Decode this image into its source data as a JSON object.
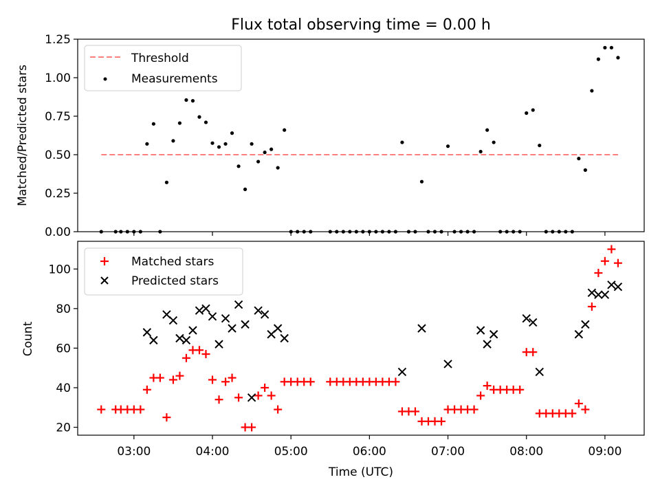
{
  "chart_data": [
    {
      "type": "scatter",
      "title": "Flux total observing time = 0.00 h",
      "xlabel": "",
      "ylabel": "Matched/Predicted stars",
      "xlim": [
        "02:17",
        "09:30"
      ],
      "ylim": [
        0,
        1.25
      ],
      "y_ticks": [
        0.0,
        0.25,
        0.5,
        0.75,
        1.0,
        1.25
      ],
      "y_tick_labels": [
        "0.00",
        "0.25",
        "0.50",
        "0.75",
        "1.00",
        "1.25"
      ],
      "x_ticks": [
        "03:00",
        "04:00",
        "05:00",
        "06:00",
        "07:00",
        "08:00",
        "09:00"
      ],
      "grid": false,
      "legend": "top-left",
      "series": [
        {
          "name": "Threshold",
          "style": "dashed-line",
          "color": "#ff7f7f",
          "points": [
            [
              "02:35",
              0.5
            ],
            [
              "09:10",
              0.5
            ]
          ]
        },
        {
          "name": "Measurements",
          "style": "dot",
          "color": "#000000",
          "points": [
            [
              "02:35",
              0.0
            ],
            [
              "02:46",
              0.0
            ],
            [
              "02:50",
              0.0
            ],
            [
              "02:55",
              0.0
            ],
            [
              "03:00",
              0.0
            ],
            [
              "03:05",
              0.0
            ],
            [
              "03:10",
              0.57
            ],
            [
              "03:15",
              0.7
            ],
            [
              "03:20",
              0.0
            ],
            [
              "03:25",
              0.32
            ],
            [
              "03:30",
              0.59
            ],
            [
              "03:35",
              0.705
            ],
            [
              "03:40",
              0.855
            ],
            [
              "03:45",
              0.85
            ],
            [
              "03:50",
              0.745
            ],
            [
              "03:55",
              0.71
            ],
            [
              "04:00",
              0.575
            ],
            [
              "04:05",
              0.55
            ],
            [
              "04:10",
              0.57
            ],
            [
              "04:15",
              0.64
            ],
            [
              "04:20",
              0.425
            ],
            [
              "04:25",
              0.275
            ],
            [
              "04:30",
              0.57
            ],
            [
              "04:35",
              0.455
            ],
            [
              "04:40",
              0.515
            ],
            [
              "04:45",
              0.535
            ],
            [
              "04:50",
              0.415
            ],
            [
              "04:55",
              0.66
            ],
            [
              "05:00",
              0.0
            ],
            [
              "05:05",
              0.0
            ],
            [
              "05:10",
              0.0
            ],
            [
              "05:15",
              0.0
            ],
            [
              "05:30",
              0.0
            ],
            [
              "05:35",
              0.0
            ],
            [
              "05:40",
              0.0
            ],
            [
              "05:45",
              0.0
            ],
            [
              "05:50",
              0.0
            ],
            [
              "05:55",
              0.0
            ],
            [
              "06:00",
              0.0
            ],
            [
              "06:05",
              0.0
            ],
            [
              "06:10",
              0.0
            ],
            [
              "06:15",
              0.0
            ],
            [
              "06:20",
              0.0
            ],
            [
              "06:25",
              0.58
            ],
            [
              "06:30",
              0.0
            ],
            [
              "06:35",
              0.0
            ],
            [
              "06:40",
              0.325
            ],
            [
              "06:45",
              0.0
            ],
            [
              "06:50",
              0.0
            ],
            [
              "06:55",
              0.0
            ],
            [
              "07:00",
              0.555
            ],
            [
              "07:05",
              0.0
            ],
            [
              "07:10",
              0.0
            ],
            [
              "07:15",
              0.0
            ],
            [
              "07:20",
              0.0
            ],
            [
              "07:25",
              0.52
            ],
            [
              "07:30",
              0.66
            ],
            [
              "07:35",
              0.58
            ],
            [
              "07:40",
              0.0
            ],
            [
              "07:45",
              0.0
            ],
            [
              "07:50",
              0.0
            ],
            [
              "07:55",
              0.0
            ],
            [
              "08:00",
              0.77
            ],
            [
              "08:05",
              0.79
            ],
            [
              "08:10",
              0.56
            ],
            [
              "08:15",
              0.0
            ],
            [
              "08:20",
              0.0
            ],
            [
              "08:25",
              0.0
            ],
            [
              "08:30",
              0.0
            ],
            [
              "08:35",
              0.0
            ],
            [
              "08:40",
              0.475
            ],
            [
              "08:45",
              0.4
            ],
            [
              "08:50",
              0.915
            ],
            [
              "08:55",
              1.12
            ],
            [
              "09:00",
              1.195
            ],
            [
              "09:05",
              1.195
            ],
            [
              "09:10",
              1.13
            ]
          ]
        }
      ]
    },
    {
      "type": "scatter",
      "title": "",
      "xlabel": "Time (UTC)",
      "ylabel": "Count",
      "xlim": [
        "02:17",
        "09:30"
      ],
      "ylim": [
        16,
        114
      ],
      "y_ticks": [
        20,
        40,
        60,
        80,
        100
      ],
      "y_tick_labels": [
        "20",
        "40",
        "60",
        "80",
        "100"
      ],
      "x_ticks": [
        "03:00",
        "04:00",
        "05:00",
        "06:00",
        "07:00",
        "08:00",
        "09:00"
      ],
      "grid": false,
      "legend": "top-left",
      "series": [
        {
          "name": "Matched stars",
          "style": "plus",
          "color": "#ff0000",
          "points": [
            [
              "02:35",
              29
            ],
            [
              "02:46",
              29
            ],
            [
              "02:50",
              29
            ],
            [
              "02:55",
              29
            ],
            [
              "03:00",
              29
            ],
            [
              "03:05",
              29
            ],
            [
              "03:10",
              39
            ],
            [
              "03:15",
              45
            ],
            [
              "03:20",
              45
            ],
            [
              "03:25",
              25
            ],
            [
              "03:30",
              44
            ],
            [
              "03:35",
              46
            ],
            [
              "03:40",
              55
            ],
            [
              "03:45",
              59
            ],
            [
              "03:50",
              59
            ],
            [
              "03:55",
              57
            ],
            [
              "04:00",
              44
            ],
            [
              "04:05",
              34
            ],
            [
              "04:10",
              43
            ],
            [
              "04:15",
              45
            ],
            [
              "04:20",
              35
            ],
            [
              "04:25",
              20
            ],
            [
              "04:30",
              20
            ],
            [
              "04:35",
              36
            ],
            [
              "04:40",
              40
            ],
            [
              "04:45",
              36
            ],
            [
              "04:50",
              29
            ],
            [
              "04:55",
              43
            ],
            [
              "05:00",
              43
            ],
            [
              "05:05",
              43
            ],
            [
              "05:10",
              43
            ],
            [
              "05:15",
              43
            ],
            [
              "05:30",
              43
            ],
            [
              "05:35",
              43
            ],
            [
              "05:40",
              43
            ],
            [
              "05:45",
              43
            ],
            [
              "05:50",
              43
            ],
            [
              "05:55",
              43
            ],
            [
              "06:00",
              43
            ],
            [
              "06:05",
              43
            ],
            [
              "06:10",
              43
            ],
            [
              "06:15",
              43
            ],
            [
              "06:20",
              43
            ],
            [
              "06:25",
              28
            ],
            [
              "06:30",
              28
            ],
            [
              "06:35",
              28
            ],
            [
              "06:40",
              23
            ],
            [
              "06:45",
              23
            ],
            [
              "06:50",
              23
            ],
            [
              "06:55",
              23
            ],
            [
              "07:00",
              29
            ],
            [
              "07:05",
              29
            ],
            [
              "07:10",
              29
            ],
            [
              "07:15",
              29
            ],
            [
              "07:20",
              29
            ],
            [
              "07:25",
              36
            ],
            [
              "07:30",
              41
            ],
            [
              "07:35",
              39
            ],
            [
              "07:40",
              39
            ],
            [
              "07:45",
              39
            ],
            [
              "07:50",
              39
            ],
            [
              "07:55",
              39
            ],
            [
              "08:00",
              58
            ],
            [
              "08:05",
              58
            ],
            [
              "08:10",
              27
            ],
            [
              "08:15",
              27
            ],
            [
              "08:20",
              27
            ],
            [
              "08:25",
              27
            ],
            [
              "08:30",
              27
            ],
            [
              "08:35",
              27
            ],
            [
              "08:40",
              32
            ],
            [
              "08:45",
              29
            ],
            [
              "08:50",
              81
            ],
            [
              "08:55",
              98
            ],
            [
              "09:00",
              104
            ],
            [
              "09:05",
              110
            ],
            [
              "09:10",
              103
            ]
          ]
        },
        {
          "name": "Predicted stars",
          "style": "x",
          "color": "#000000",
          "points": [
            [
              "03:10",
              68
            ],
            [
              "03:15",
              64
            ],
            [
              "03:25",
              77
            ],
            [
              "03:30",
              74
            ],
            [
              "03:35",
              65
            ],
            [
              "03:40",
              64
            ],
            [
              "03:45",
              69
            ],
            [
              "03:50",
              79
            ],
            [
              "03:55",
              80
            ],
            [
              "04:00",
              76
            ],
            [
              "04:05",
              62
            ],
            [
              "04:10",
              75
            ],
            [
              "04:15",
              70
            ],
            [
              "04:20",
              82
            ],
            [
              "04:25",
              72
            ],
            [
              "04:30",
              35
            ],
            [
              "04:35",
              79
            ],
            [
              "04:40",
              77
            ],
            [
              "04:45",
              67
            ],
            [
              "04:50",
              70
            ],
            [
              "04:55",
              65
            ],
            [
              "06:25",
              48
            ],
            [
              "06:40",
              70
            ],
            [
              "07:00",
              52
            ],
            [
              "07:25",
              69
            ],
            [
              "07:30",
              62
            ],
            [
              "07:35",
              67
            ],
            [
              "08:00",
              75
            ],
            [
              "08:05",
              73
            ],
            [
              "08:10",
              48
            ],
            [
              "08:40",
              67
            ],
            [
              "08:45",
              72
            ],
            [
              "08:50",
              88
            ],
            [
              "08:55",
              87
            ],
            [
              "09:00",
              87
            ],
            [
              "09:05",
              92
            ],
            [
              "09:10",
              91
            ]
          ]
        }
      ]
    }
  ]
}
